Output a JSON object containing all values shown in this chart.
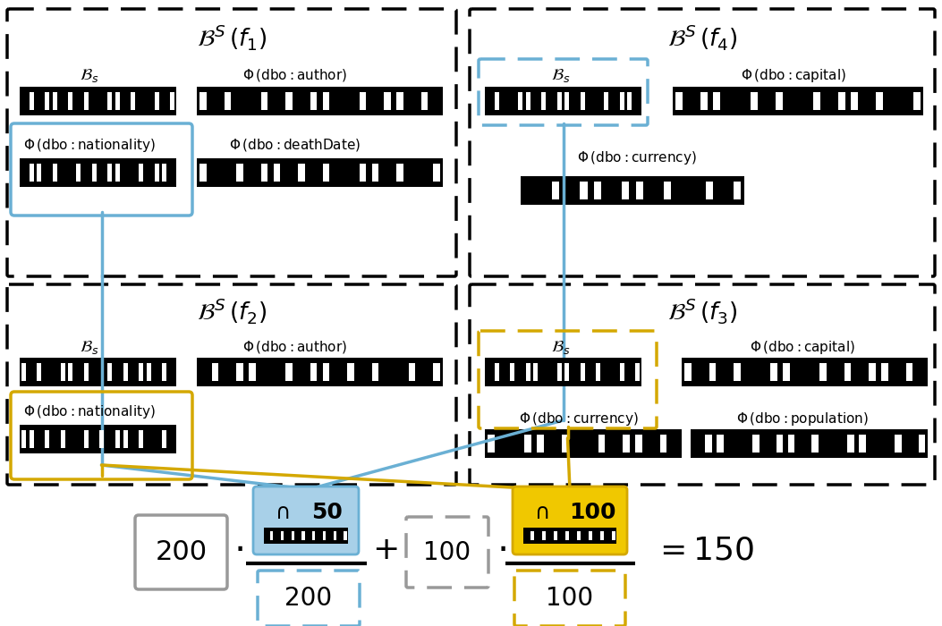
{
  "bg_color": "#ffffff",
  "blue_color": "#6ab0d4",
  "blue_fill": "#a8d0e8",
  "yellow_color": "#d4a800",
  "yellow_fill": "#f0c800",
  "gray_color": "#999999",
  "black": "#000000",
  "white": "#ffffff",
  "fig_w": 10.53,
  "fig_h": 7.0
}
